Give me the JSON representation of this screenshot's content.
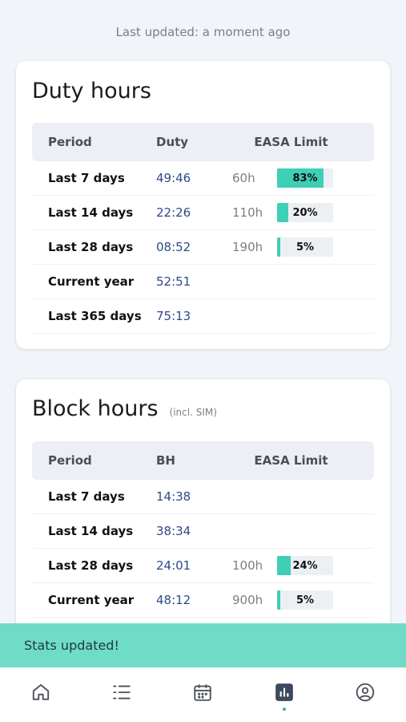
{
  "status": {
    "updated_text": "Last updated: a moment ago"
  },
  "duty_card": {
    "title": "Duty hours",
    "columns": [
      "Period",
      "Duty",
      "EASA Limit"
    ],
    "rows": [
      {
        "period": "Last 7 days",
        "value": "49:46",
        "limit": "60h",
        "percent_label": "83%",
        "percent": 83
      },
      {
        "period": "Last 14 days",
        "value": "22:26",
        "limit": "110h",
        "percent_label": "20%",
        "percent": 20
      },
      {
        "period": "Last 28 days",
        "value": "08:52",
        "limit": "190h",
        "percent_label": "5%",
        "percent": 5
      },
      {
        "period": "Current year",
        "value": "52:51",
        "limit": "",
        "percent_label": "",
        "percent": null
      },
      {
        "period": "Last 365 days",
        "value": "75:13",
        "limit": "",
        "percent_label": "",
        "percent": null
      }
    ]
  },
  "block_card": {
    "title": "Block hours",
    "subtitle": "(incl. SIM)",
    "columns": [
      "Period",
      "BH",
      "EASA Limit"
    ],
    "rows": [
      {
        "period": "Last 7 days",
        "value": "14:38",
        "limit": "",
        "percent_label": "",
        "percent": null
      },
      {
        "period": "Last 14 days",
        "value": "38:34",
        "limit": "",
        "percent_label": "",
        "percent": null
      },
      {
        "period": "Last 28 days",
        "value": "24:01",
        "limit": "100h",
        "percent_label": "24%",
        "percent": 24
      },
      {
        "period": "Current year",
        "value": "48:12",
        "limit": "900h",
        "percent_label": "5%",
        "percent": 5
      }
    ]
  },
  "toast": {
    "message": "Stats updated!"
  },
  "tabbar": {
    "tabs": [
      {
        "icon": "home-icon",
        "active": false
      },
      {
        "icon": "list-icon",
        "active": false
      },
      {
        "icon": "calendar-icon",
        "active": false
      },
      {
        "icon": "stats-icon",
        "active": true
      },
      {
        "icon": "profile-icon",
        "active": false
      }
    ]
  },
  "colors": {
    "accent": "#3fcfb6",
    "toast_bg": "#6fdcc8",
    "value_text": "#2d4a8a"
  }
}
